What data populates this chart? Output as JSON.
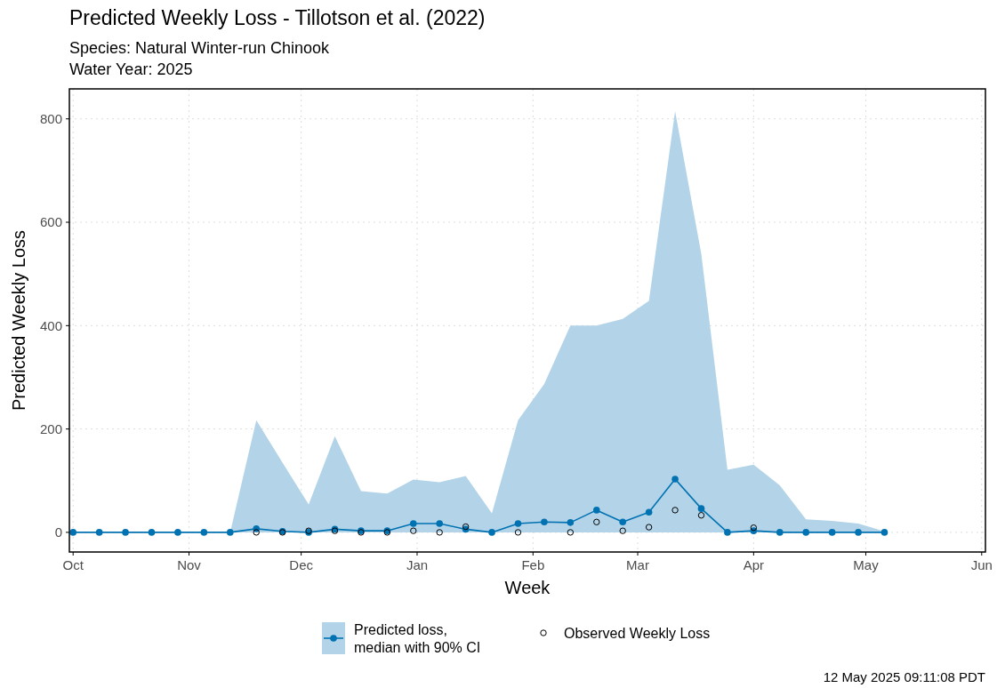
{
  "chart_data": {
    "type": "line",
    "title": "Predicted Weekly Loss - Tillotson et al. (2022)",
    "subtitle": "Species: Natural Winter-run Chinook\nWater Year: 2025",
    "xlabel": "Week",
    "ylabel": "Predicted Weekly Loss",
    "x": [
      "2024-10-01",
      "2024-10-08",
      "2024-10-15",
      "2024-10-22",
      "2024-10-29",
      "2024-11-05",
      "2024-11-12",
      "2024-11-19",
      "2024-11-26",
      "2024-12-03",
      "2024-12-10",
      "2024-12-17",
      "2024-12-24",
      "2024-12-31",
      "2025-01-07",
      "2025-01-14",
      "2025-01-21",
      "2025-01-28",
      "2025-02-04",
      "2025-02-11",
      "2025-02-18",
      "2025-02-25",
      "2025-03-04",
      "2025-03-11",
      "2025-03-18",
      "2025-03-25",
      "2025-04-01",
      "2025-04-08",
      "2025-04-15",
      "2025-04-22",
      "2025-04-29",
      "2025-05-06"
    ],
    "series": [
      {
        "type": "area",
        "color": "#b3d4e8",
        "values": [
          0,
          0,
          0,
          0,
          0,
          0,
          0,
          217,
          135,
          54,
          186,
          80,
          75,
          102,
          97,
          109,
          37,
          217,
          287,
          400,
          400,
          413,
          448,
          815,
          539,
          121,
          131,
          91,
          25,
          22,
          17,
          2
        ]
      },
      {
        "name": "Predicted loss, median with 90% CI",
        "color": "#0072b2",
        "type": "line",
        "marker": "circle",
        "values": [
          0,
          0,
          0,
          0,
          0,
          0,
          0,
          7,
          2,
          0,
          6,
          3,
          3,
          17,
          17,
          6,
          0,
          17,
          20,
          19,
          43,
          20,
          39,
          103,
          46,
          0,
          3,
          0,
          0,
          0,
          0,
          0
        ]
      },
      {
        "name": "Observed Weekly Loss",
        "color": "#000000",
        "type": "scatter",
        "marker": "circle",
        "x": [
          "2024-11-19",
          "2024-11-26",
          "2024-12-03",
          "2024-12-10",
          "2024-12-17",
          "2024-12-24",
          "2024-12-31",
          "2025-01-07",
          "2025-01-14",
          "2025-01-28",
          "2025-02-11",
          "2025-02-18",
          "2025-02-25",
          "2025-03-04",
          "2025-03-11",
          "2025-03-18",
          "2025-04-01"
        ],
        "values": [
          0,
          0,
          3,
          3,
          0,
          0,
          3,
          0,
          11,
          0,
          0,
          20,
          3,
          10,
          43,
          33,
          9
        ]
      }
    ],
    "xlim": [
      "2024-09-30",
      "2025-06-02"
    ],
    "xticks": [
      {
        "value": "2024-10-01",
        "label": "Oct"
      },
      {
        "value": "2024-11-01",
        "label": "Nov"
      },
      {
        "value": "2024-12-01",
        "label": "Dec"
      },
      {
        "value": "2025-01-01",
        "label": "Jan"
      },
      {
        "value": "2025-02-01",
        "label": "Feb"
      },
      {
        "value": "2025-03-01",
        "label": "Mar"
      },
      {
        "value": "2025-04-01",
        "label": "Apr"
      },
      {
        "value": "2025-05-01",
        "label": "May"
      },
      {
        "value": "2025-06-01",
        "label": "Jun"
      }
    ],
    "ylim": [
      -38,
      858
    ],
    "yticks": [
      0,
      200,
      400,
      600,
      800
    ],
    "grid": true,
    "legend": "bottom",
    "annotations": [
      "12 May 2025 09:11:08 PDT"
    ]
  }
}
